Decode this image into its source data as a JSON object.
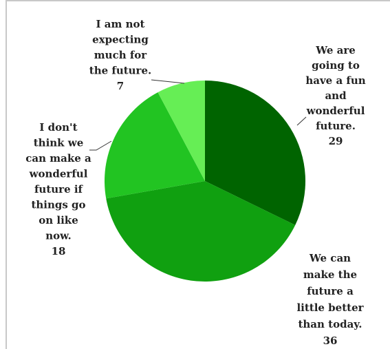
{
  "chart_data": {
    "type": "pie",
    "slices": [
      {
        "label": "We are going to have a fun and wonderful future.",
        "value": 29,
        "color": "#006400",
        "label_lines": [
          "We are",
          "going to",
          "have a fun",
          "and",
          "wonderful",
          "future."
        ]
      },
      {
        "label": "We can make the future a little better than today.",
        "value": 36,
        "color": "#10a010",
        "label_lines": [
          "We can",
          "make the",
          "future a",
          "little better",
          "than today."
        ]
      },
      {
        "label": "I don't think we can make a wonderful future if things go on like now.",
        "value": 18,
        "color": "#22c422",
        "label_lines": [
          "I don't",
          "think we",
          "can make a",
          "wonderful",
          "future if",
          "things go",
          "on like",
          "now."
        ]
      },
      {
        "label": "I am not expecting much for the future.",
        "value": 7,
        "color": "#66ee55",
        "label_lines": [
          "I am not",
          "expecting",
          "much for",
          "the future."
        ]
      }
    ],
    "start_angle_deg": 0,
    "direction": "clockwise",
    "legend": "none"
  }
}
